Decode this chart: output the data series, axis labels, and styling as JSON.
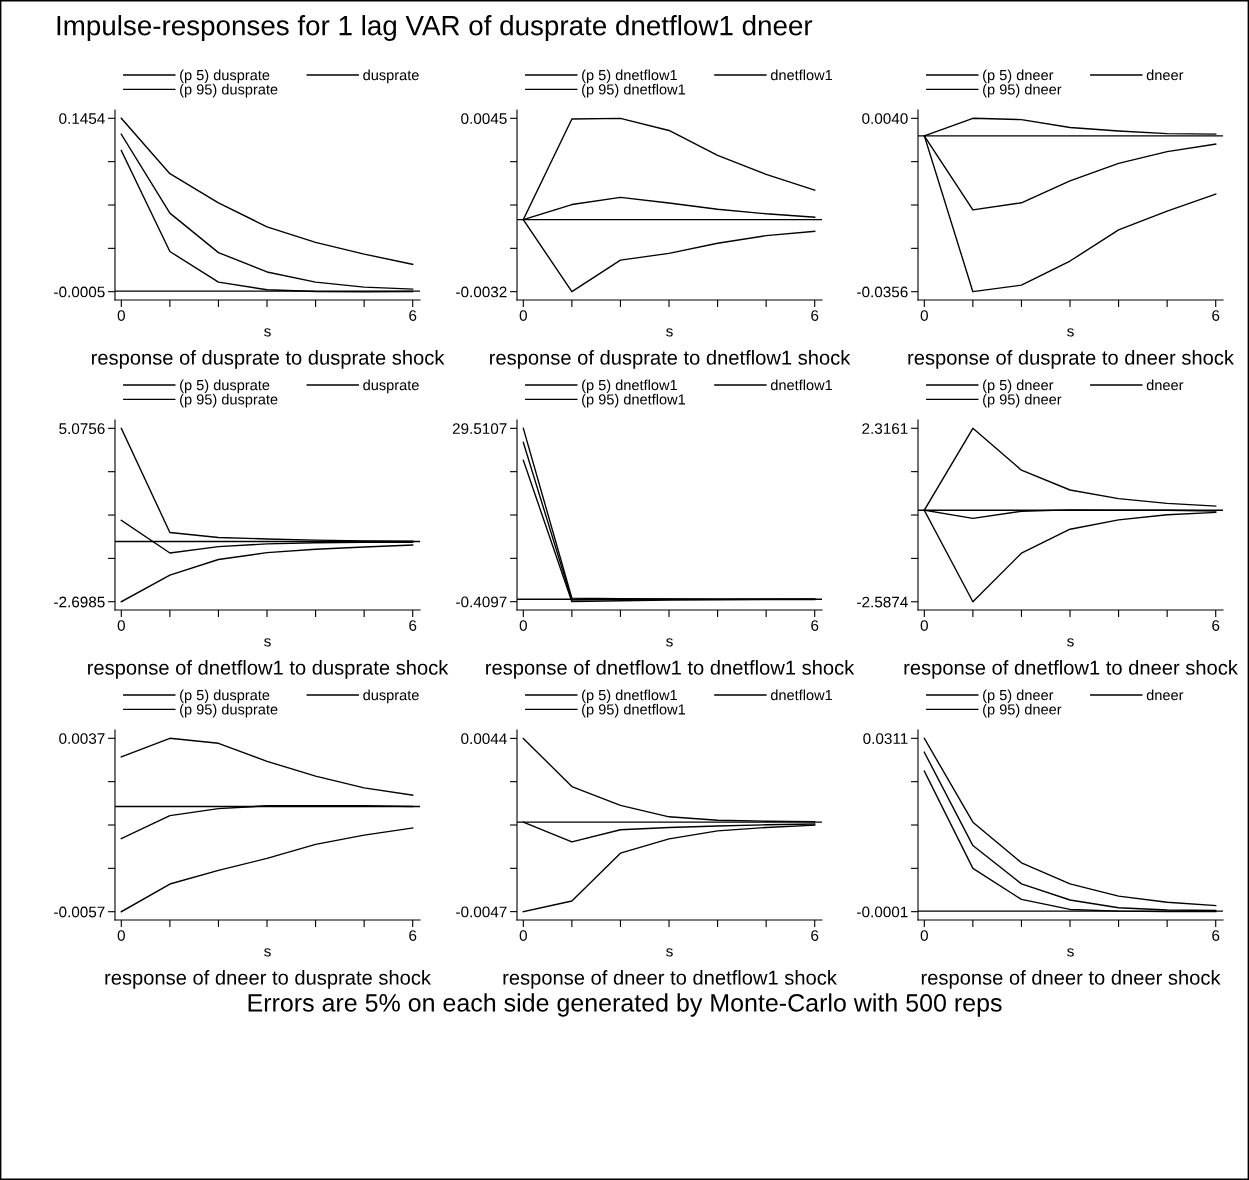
{
  "chart_data": [
    {
      "type": "line",
      "title": "response of dusprate to dusprate shock",
      "xlabel": "s",
      "annotations": [
        "Impulse-responses for 1 lag VAR of dusprate dnetflow1 dneer"
      ],
      "x": [
        0,
        1,
        2,
        3,
        4,
        5,
        6
      ],
      "legend": "top",
      "grid": false,
      "series": [
        {
          "name": "(p 5) dusprate",
          "color": "#000000",
          "values": [
            0.1183,
            0.0333,
            0.0075,
            0.0011,
            -0.0003,
            -0.0005,
            -0.0004
          ]
        },
        {
          "name": "dusprate",
          "color": "#000000",
          "values": [
            0.132,
            0.0656,
            0.0324,
            0.0161,
            0.0075,
            0.0033,
            0.0017
          ]
        },
        {
          "name": "(p 95) dusprate",
          "color": "#000000",
          "values": [
            0.1454,
            0.0988,
            0.0742,
            0.0541,
            0.041,
            0.0311,
            0.0225
          ]
        }
      ],
      "ref_lines": [
        {
          "axis": "y",
          "value": 0,
          "color": "#000000"
        }
      ],
      "xlim": [
        -0.13,
        6.15
      ],
      "xticks": [
        0,
        {
          "value": 1,
          "label": null
        },
        {
          "value": 2,
          "label": null
        },
        {
          "value": 3,
          "label": null
        },
        {
          "value": 4,
          "label": null
        },
        {
          "value": 5,
          "label": null
        },
        6
      ],
      "ylim": [
        -0.0075,
        0.1524
      ],
      "yticks": [
        {
          "value": -0.0005,
          "label": "-0.0005"
        },
        {
          "value": 0.035975,
          "label": null
        },
        {
          "value": 0.07245,
          "label": null
        },
        {
          "value": 0.108925,
          "label": null
        },
        {
          "value": 0.1454,
          "label": "0.1454"
        }
      ]
    },
    {
      "type": "line",
      "title": "response of dusprate to dnetflow1 shock",
      "xlabel": "s",
      "x": [
        0,
        1,
        2,
        3,
        4,
        5,
        6
      ],
      "legend": "top",
      "grid": false,
      "series": [
        {
          "name": "(p 5) dnetflow1",
          "color": "#000000",
          "values": [
            0,
            -0.0032,
            -0.0018,
            -0.0015,
            -0.00105,
            -0.00071,
            -0.00052
          ]
        },
        {
          "name": "dnetflow1",
          "color": "#000000",
          "values": [
            0,
            0.00067,
            0.00099,
            0.00074,
            0.00046,
            0.00026,
            0.00011
          ]
        },
        {
          "name": "(p 95) dnetflow1",
          "color": "#000000",
          "values": [
            0,
            0.00447,
            0.0045,
            0.00396,
            0.00285,
            0.00201,
            0.00131
          ]
        }
      ],
      "ref_lines": [
        {
          "axis": "y",
          "value": 0,
          "color": "#000000"
        }
      ],
      "xlim": [
        -0.13,
        6.15
      ],
      "xticks": [
        0,
        {
          "value": 1,
          "label": null
        },
        {
          "value": 2,
          "label": null
        },
        {
          "value": 3,
          "label": null
        },
        {
          "value": 4,
          "label": null
        },
        {
          "value": 5,
          "label": null
        },
        6
      ],
      "ylim": [
        -0.00357,
        0.00487
      ],
      "yticks": [
        {
          "value": -0.0032,
          "label": "-0.0032"
        },
        {
          "value": -0.001275,
          "label": null
        },
        {
          "value": 0.00065,
          "label": null
        },
        {
          "value": 0.002575,
          "label": null
        },
        {
          "value": 0.0045,
          "label": "0.0045"
        }
      ]
    },
    {
      "type": "line",
      "title": "response of dusprate to dneer shock",
      "xlabel": "s",
      "x": [
        0,
        1,
        2,
        3,
        4,
        5,
        6
      ],
      "legend": "top",
      "grid": false,
      "series": [
        {
          "name": "(p 5) dneer",
          "color": "#000000",
          "values": [
            0,
            -0.0356,
            -0.0341,
            -0.0286,
            -0.0215,
            -0.0172,
            -0.0133
          ]
        },
        {
          "name": "dneer",
          "color": "#000000",
          "values": [
            0,
            -0.0169,
            -0.0153,
            -0.0103,
            -0.0063,
            -0.0036,
            -0.0019
          ]
        },
        {
          "name": "(p 95) dneer",
          "color": "#000000",
          "values": [
            0,
            0.004,
            0.0037,
            0.0019,
            0.0011,
            0.0005,
            0.0004
          ]
        }
      ],
      "ref_lines": [
        {
          "axis": "y",
          "value": 0,
          "color": "#000000"
        }
      ],
      "xlim": [
        -0.13,
        6.15
      ],
      "xticks": [
        0,
        {
          "value": 1,
          "label": null
        },
        {
          "value": 2,
          "label": null
        },
        {
          "value": 3,
          "label": null
        },
        {
          "value": 4,
          "label": null
        },
        {
          "value": 5,
          "label": null
        },
        6
      ],
      "ylim": [
        -0.0375,
        0.0059
      ],
      "yticks": [
        {
          "value": -0.0356,
          "label": "-0.0356"
        },
        {
          "value": -0.0257,
          "label": null
        },
        {
          "value": -0.0158,
          "label": null
        },
        {
          "value": -0.0059,
          "label": null
        },
        {
          "value": 0.004,
          "label": "0.0040"
        }
      ]
    },
    {
      "type": "line",
      "title": "response of dnetflow1 to dusprate shock",
      "xlabel": "s",
      "x": [
        0,
        1,
        2,
        3,
        4,
        5,
        6
      ],
      "legend": "top",
      "grid": false,
      "series": [
        {
          "name": "(p 5) dusprate",
          "color": "#000000",
          "values": [
            -2.6985,
            -1.505,
            -0.806,
            -0.499,
            -0.346,
            -0.244,
            -0.158
          ]
        },
        {
          "name": "dusprate",
          "color": "#000000",
          "values": [
            0.95,
            -0.516,
            -0.226,
            -0.107,
            -0.056,
            -0.04,
            -0.03
          ]
        },
        {
          "name": "(p 95) dusprate",
          "color": "#000000",
          "values": [
            5.0756,
            0.404,
            0.183,
            0.115,
            0.064,
            0.03,
            0.013
          ]
        }
      ],
      "ref_lines": [
        {
          "axis": "y",
          "value": 0,
          "color": "#000000"
        }
      ],
      "xlim": [
        -0.13,
        6.15
      ],
      "xticks": [
        0,
        {
          "value": 1,
          "label": null
        },
        {
          "value": 2,
          "label": null
        },
        {
          "value": 3,
          "label": null
        },
        {
          "value": 4,
          "label": null
        },
        {
          "value": 5,
          "label": null
        },
        6
      ],
      "ylim": [
        -3.07,
        5.45
      ],
      "yticks": [
        {
          "value": -2.6985,
          "label": "-2.6985"
        },
        {
          "value": -0.754975,
          "label": null
        },
        {
          "value": 1.18855,
          "label": null
        },
        {
          "value": 3.132075,
          "label": null
        },
        {
          "value": 5.0756,
          "label": "5.0756"
        }
      ]
    },
    {
      "type": "line",
      "title": "response of dnetflow1 to dnetflow1 shock",
      "xlabel": "s",
      "x": [
        0,
        1,
        2,
        3,
        4,
        5,
        6
      ],
      "legend": "top",
      "grid": false,
      "series": [
        {
          "name": "(p 5) dnetflow1",
          "color": "#000000",
          "values": [
            24.0,
            -0.4097,
            -0.25,
            -0.15,
            -0.08,
            -0.05,
            -0.03
          ]
        },
        {
          "name": "dnetflow1",
          "color": "#000000",
          "values": [
            27.08,
            -0.15,
            -0.05,
            -0.02,
            -0.01,
            0,
            0
          ]
        },
        {
          "name": "(p 95) dnetflow1",
          "color": "#000000",
          "values": [
            29.5107,
            0.2,
            0.1,
            0.05,
            0.03,
            0.02,
            0.01
          ]
        }
      ],
      "ref_lines": [
        {
          "axis": "y",
          "value": 0,
          "color": "#000000"
        }
      ],
      "xlim": [
        -0.13,
        6.15
      ],
      "xticks": [
        0,
        {
          "value": 1,
          "label": null
        },
        {
          "value": 2,
          "label": null
        },
        {
          "value": 3,
          "label": null
        },
        {
          "value": 4,
          "label": null
        },
        {
          "value": 5,
          "label": null
        },
        6
      ],
      "ylim": [
        -1.85,
        30.95
      ],
      "yticks": [
        {
          "value": -0.4097,
          "label": "-0.4097"
        },
        {
          "value": 7.0704,
          "label": null
        },
        {
          "value": 14.5505,
          "label": null
        },
        {
          "value": 22.0306,
          "label": null
        },
        {
          "value": 29.5107,
          "label": "29.5107"
        }
      ]
    },
    {
      "type": "line",
      "title": "response of dnetflow1 to dneer shock",
      "xlabel": "s",
      "x": [
        0,
        1,
        2,
        3,
        4,
        5,
        6
      ],
      "legend": "top",
      "grid": false,
      "series": [
        {
          "name": "(p 5) dneer",
          "color": "#000000",
          "values": [
            0,
            -2.5874,
            -1.214,
            -0.537,
            -0.273,
            -0.127,
            -0.063
          ]
        },
        {
          "name": "dneer",
          "color": "#000000",
          "values": [
            0,
            -0.231,
            -0.03,
            0.01,
            0,
            0,
            -0.02
          ]
        },
        {
          "name": "(p 95) dneer",
          "color": "#000000",
          "values": [
            0,
            2.3161,
            1.132,
            0.572,
            0.329,
            0.192,
            0.118
          ]
        }
      ],
      "ref_lines": [
        {
          "axis": "y",
          "value": 0,
          "color": "#000000"
        }
      ],
      "xlim": [
        -0.13,
        6.15
      ],
      "xticks": [
        0,
        {
          "value": 1,
          "label": null
        },
        {
          "value": 2,
          "label": null
        },
        {
          "value": 3,
          "label": null
        },
        {
          "value": 4,
          "label": null
        },
        {
          "value": 5,
          "label": null
        },
        6
      ],
      "ylim": [
        -2.82,
        2.55
      ],
      "yticks": [
        {
          "value": -2.5874,
          "label": "-2.5874"
        },
        {
          "value": -1.361525,
          "label": null
        },
        {
          "value": -0.13565,
          "label": null
        },
        {
          "value": 1.090225,
          "label": null
        },
        {
          "value": 2.3161,
          "label": "2.3161"
        }
      ]
    },
    {
      "type": "line",
      "title": "response of dneer to dusprate shock",
      "xlabel": "s",
      "x": [
        0,
        1,
        2,
        3,
        4,
        5,
        6
      ],
      "legend": "top",
      "grid": false,
      "series": [
        {
          "name": "(p 5) dusprate",
          "color": "#000000",
          "values": [
            -0.0057,
            -0.0042,
            -0.00346,
            -0.00281,
            -0.00205,
            -0.00155,
            -0.00116
          ]
        },
        {
          "name": "dusprate",
          "color": "#000000",
          "values": [
            -0.00174,
            -0.00049,
            -0.00011,
            4e-05,
            4e-05,
            4e-05,
            0
          ]
        },
        {
          "name": "(p 95) dusprate",
          "color": "#000000",
          "values": [
            0.00269,
            0.0037,
            0.00343,
            0.00245,
            0.00165,
            0.00101,
            0.00062
          ]
        }
      ],
      "ref_lines": [
        {
          "axis": "y",
          "value": 0,
          "color": "#000000"
        }
      ],
      "xlim": [
        -0.13,
        6.15
      ],
      "xticks": [
        0,
        {
          "value": 1,
          "label": null
        },
        {
          "value": 2,
          "label": null
        },
        {
          "value": 3,
          "label": null
        },
        {
          "value": 4,
          "label": null
        },
        {
          "value": 5,
          "label": null
        },
        6
      ],
      "ylim": [
        -0.00615,
        0.00415
      ],
      "yticks": [
        {
          "value": -0.0057,
          "label": "-0.0057"
        },
        {
          "value": -0.00335,
          "label": null
        },
        {
          "value": -0.001,
          "label": null
        },
        {
          "value": 0.00135,
          "label": null
        },
        {
          "value": 0.0037,
          "label": "0.0037"
        }
      ]
    },
    {
      "type": "line",
      "title": "response of dneer to dnetflow1 shock",
      "xlabel": "s",
      "x": [
        0,
        1,
        2,
        3,
        4,
        5,
        6
      ],
      "legend": "top",
      "grid": false,
      "series": [
        {
          "name": "(p 5) dnetflow1",
          "color": "#000000",
          "values": [
            -0.0047,
            -0.00414,
            -0.00163,
            -0.00088,
            -0.00046,
            -0.00028,
            -0.00016
          ]
        },
        {
          "name": "dnetflow1",
          "color": "#000000",
          "values": [
            0,
            -0.00104,
            -0.0004,
            -0.00028,
            -0.0002,
            -0.00014,
            -0.0001
          ]
        },
        {
          "name": "(p 95) dnetflow1",
          "color": "#000000",
          "values": [
            0.0044,
            0.00187,
            0.00088,
            0.00028,
            0.0001,
            5e-05,
            3e-05
          ]
        }
      ],
      "ref_lines": [
        {
          "axis": "y",
          "value": 0,
          "color": "#000000"
        }
      ],
      "xlim": [
        -0.13,
        6.15
      ],
      "xticks": [
        0,
        {
          "value": 1,
          "label": null
        },
        {
          "value": 2,
          "label": null
        },
        {
          "value": 3,
          "label": null
        },
        {
          "value": 4,
          "label": null
        },
        {
          "value": 5,
          "label": null
        },
        6
      ],
      "ylim": [
        -0.00514,
        0.00484
      ],
      "yticks": [
        {
          "value": -0.0047,
          "label": "-0.0047"
        },
        {
          "value": -0.002425,
          "label": null
        },
        {
          "value": -0.00015,
          "label": null
        },
        {
          "value": 0.002125,
          "label": null
        },
        {
          "value": 0.0044,
          "label": "0.0044"
        }
      ]
    },
    {
      "type": "line",
      "title": "response of dneer to dneer shock",
      "xlabel": "s",
      "annotations": [
        "Errors are 5% on each side generated by Monte-Carlo with 500 reps"
      ],
      "x": [
        0,
        1,
        2,
        3,
        4,
        5,
        6
      ],
      "legend": "top",
      "grid": false,
      "series": [
        {
          "name": "(p 5) dneer",
          "color": "#000000",
          "values": [
            0.0252,
            0.0077,
            0.0021,
            0.0003,
            0,
            -0.0001,
            -0.0001
          ]
        },
        {
          "name": "dneer",
          "color": "#000000",
          "values": [
            0.0286,
            0.0118,
            0.0049,
            0.002,
            0.0006,
            0.0002,
            0.0001
          ]
        },
        {
          "name": "(p 95) dneer",
          "color": "#000000",
          "values": [
            0.0311,
            0.016,
            0.0087,
            0.0049,
            0.0027,
            0.0016,
            0.001
          ]
        }
      ],
      "ref_lines": [
        {
          "axis": "y",
          "value": 0,
          "color": "#000000"
        }
      ],
      "xlim": [
        -0.13,
        6.15
      ],
      "xticks": [
        0,
        {
          "value": 1,
          "label": null
        },
        {
          "value": 2,
          "label": null
        },
        {
          "value": 3,
          "label": null
        },
        {
          "value": 4,
          "label": null
        },
        {
          "value": 5,
          "label": null
        },
        6
      ],
      "ylim": [
        -0.0016,
        0.0326
      ],
      "yticks": [
        {
          "value": -0.0001,
          "label": "-0.0001"
        },
        {
          "value": 0.0077,
          "label": null
        },
        {
          "value": 0.0155,
          "label": null
        },
        {
          "value": 0.0233,
          "label": null
        },
        {
          "value": 0.0311,
          "label": "0.0311"
        }
      ]
    }
  ]
}
